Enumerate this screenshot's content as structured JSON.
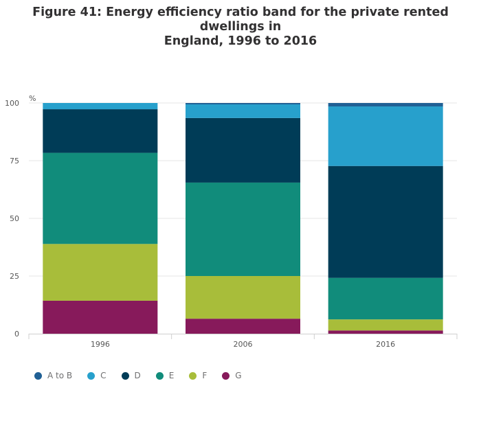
{
  "chart_data": {
    "type": "bar",
    "stacked": true,
    "title_lines": [
      "Figure 41: Energy efficiency ratio band for the private rented dwellings in",
      "England, 1996 to 2016"
    ],
    "ylabel": "%",
    "ylim": [
      0,
      100
    ],
    "yticks": [
      0,
      25,
      50,
      75,
      100
    ],
    "categories": [
      "1996",
      "2006",
      "2016"
    ],
    "series": [
      {
        "name": "G",
        "color": "#871A5B",
        "values": [
          14.3,
          6.5,
          1.4
        ]
      },
      {
        "name": "F",
        "color": "#A8BD3A",
        "values": [
          24.6,
          18.5,
          4.8
        ]
      },
      {
        "name": "E",
        "color": "#118C7B",
        "values": [
          39.5,
          40.5,
          18.0
        ]
      },
      {
        "name": "D",
        "color": "#003C57",
        "values": [
          18.9,
          28.0,
          48.5
        ]
      },
      {
        "name": "C",
        "color": "#27A0CC",
        "values": [
          2.7,
          5.9,
          25.8
        ]
      },
      {
        "name": "A to B",
        "color": "#206095",
        "values": [
          0.0,
          0.6,
          1.5
        ]
      }
    ],
    "legend_order": [
      "A to B",
      "C",
      "D",
      "E",
      "F",
      "G"
    ],
    "legend_position": "bottom-left",
    "grid": true
  }
}
